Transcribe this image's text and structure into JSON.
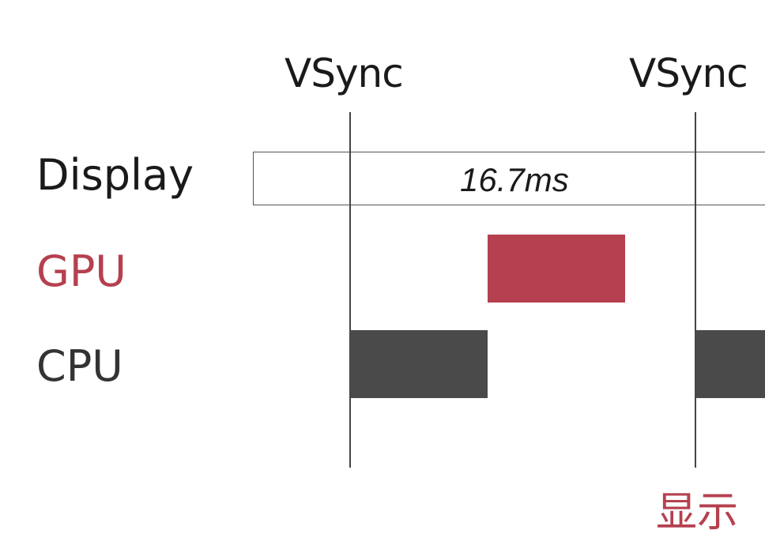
{
  "diagram": {
    "vsync_labels": [
      "VSync",
      "VSync"
    ],
    "rows": {
      "display": "Display",
      "gpu": "GPU",
      "cpu": "CPU"
    },
    "frame_duration": "16.7ms",
    "display_caption": "显示"
  },
  "colors": {
    "gpu": "#b5404f",
    "cpu": "#4a4a4a",
    "text": "#1a1a1a",
    "cpu_label": "#333333"
  }
}
